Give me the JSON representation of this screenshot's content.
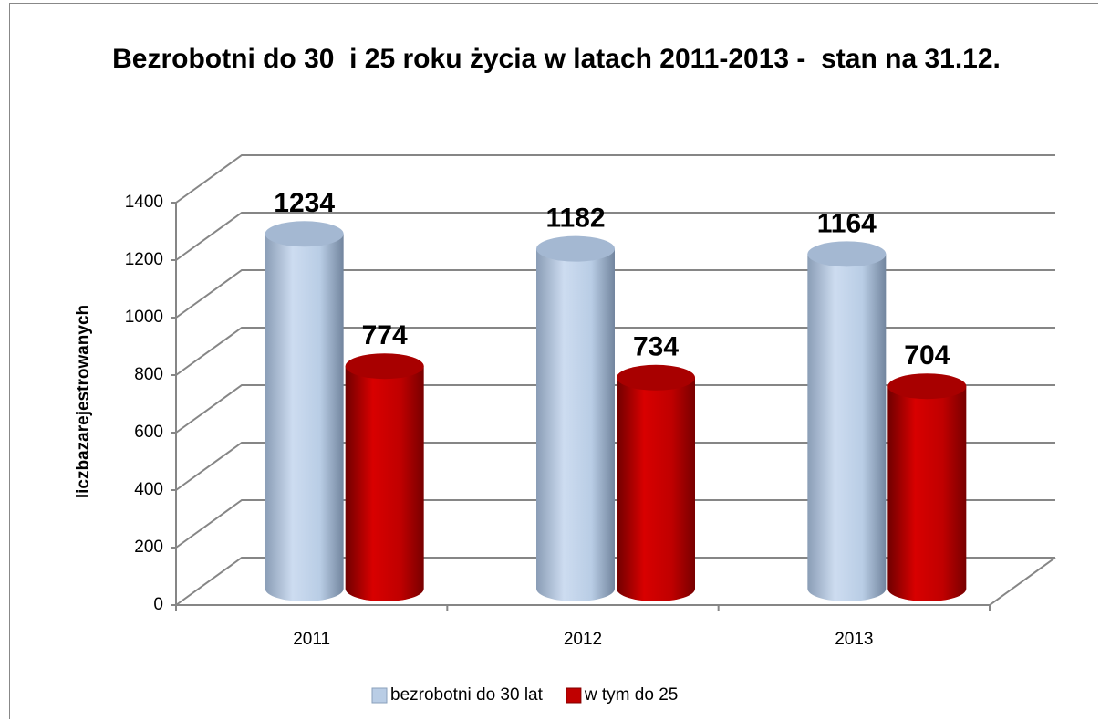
{
  "chart_data": {
    "type": "bar3d",
    "title": "Bezrobotni do 30  i 25 roku życia w latach 2011-2013 -  stan na 31.12.",
    "y_label": "liczbazarejestrowanych",
    "categories": [
      "2011",
      "2012",
      "2013"
    ],
    "series": [
      {
        "name": "bezrobotni do 30 lat",
        "color": "#b9cde5",
        "values": [
          1234,
          1182,
          1164
        ]
      },
      {
        "name": "w tym do 25",
        "color": "#c00000",
        "values": [
          774,
          734,
          704
        ]
      }
    ],
    "ylim": [
      0,
      1400
    ],
    "yticks": [
      0,
      200,
      400,
      600,
      800,
      1000,
      1200,
      1400
    ],
    "grid": true,
    "legend": "bottom"
  }
}
